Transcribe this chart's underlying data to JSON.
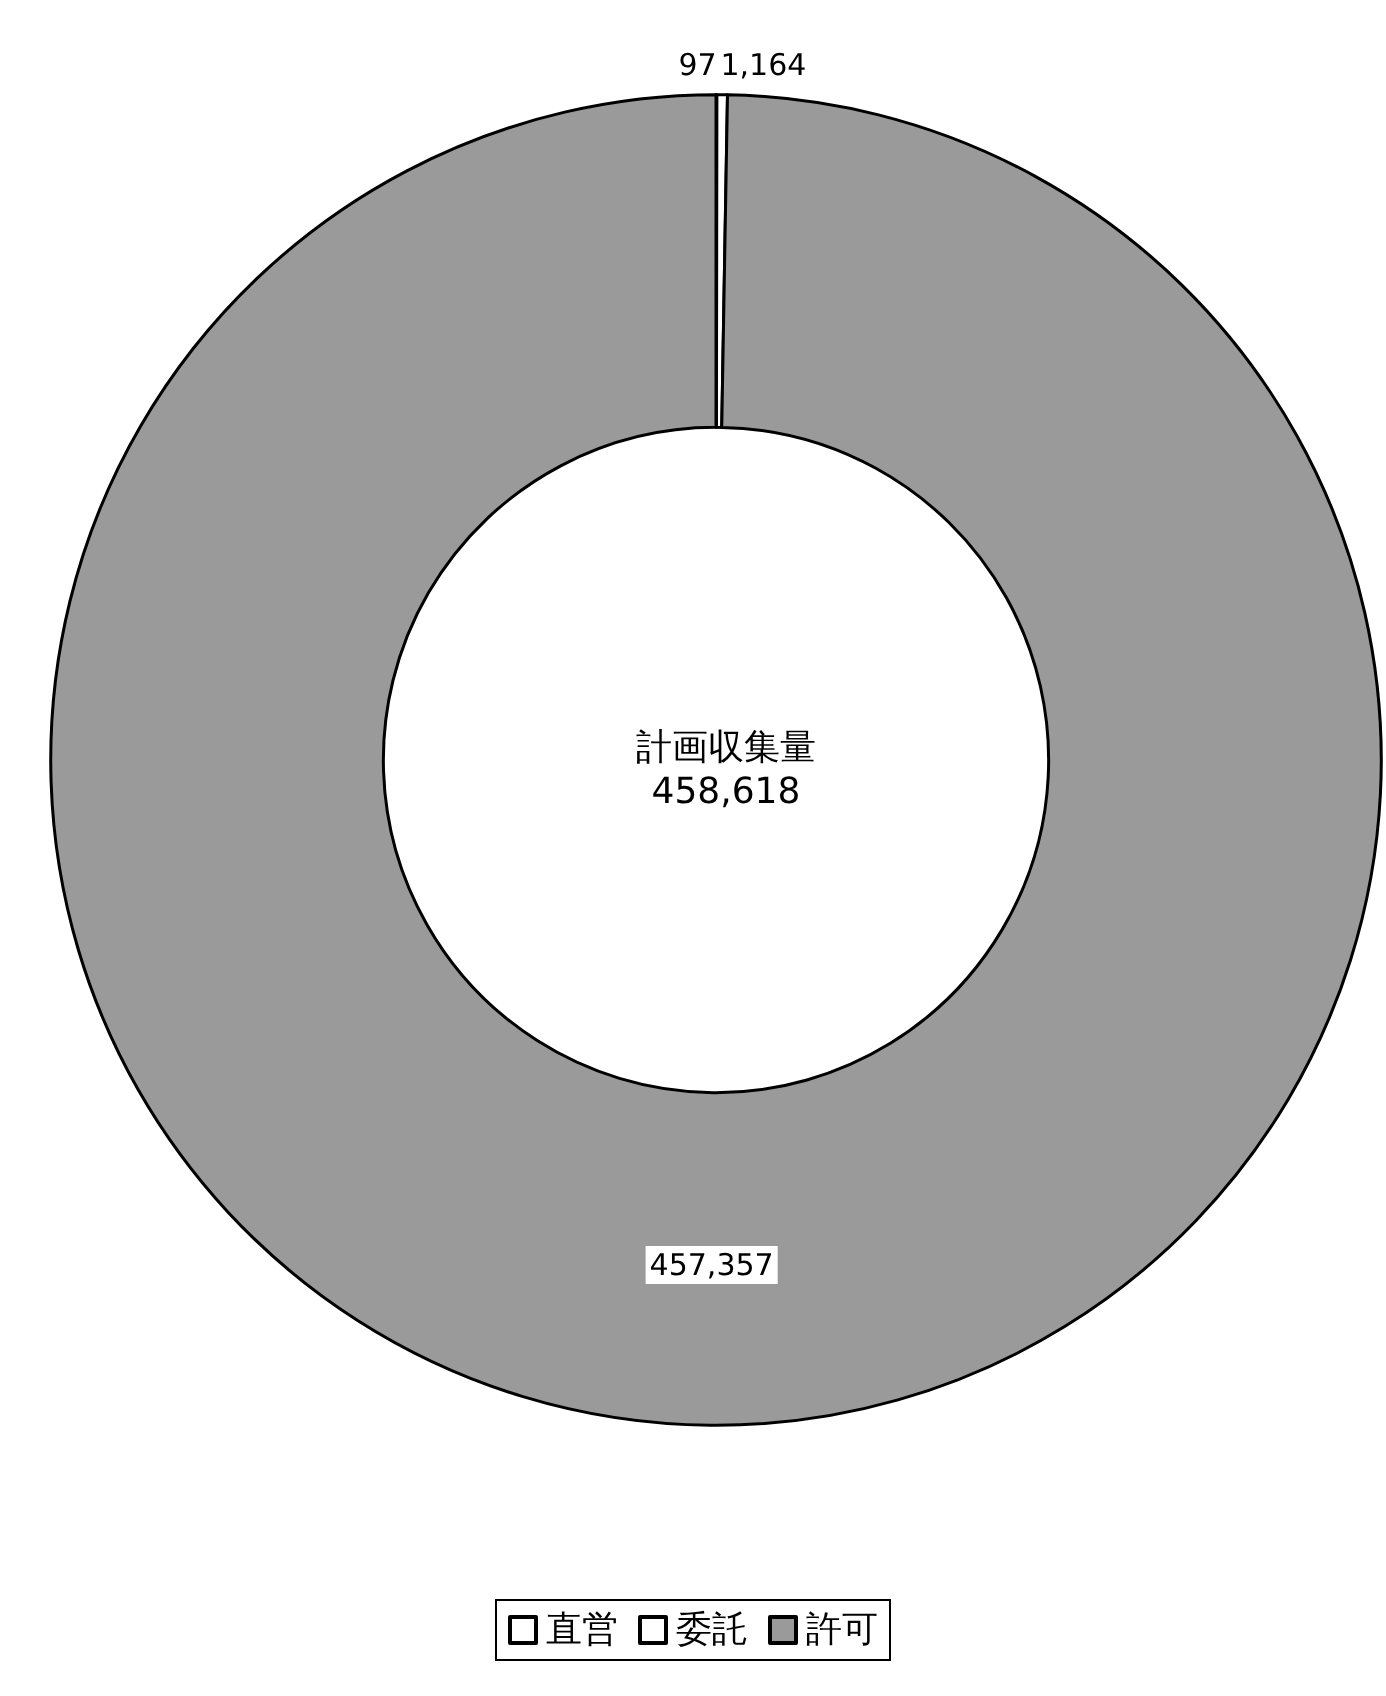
{
  "chart_data": {
    "type": "donut",
    "categories": [
      "直営",
      "委託",
      "許可"
    ],
    "values": [
      97,
      1164,
      457357
    ],
    "colors": [
      "#ffffff",
      "#ffffff",
      "#9a9a9a"
    ],
    "value_labels": [
      "97",
      "1,164",
      "457,357"
    ],
    "annotations": [
      "計画収集量",
      "458,618"
    ],
    "legend": "bottom"
  }
}
